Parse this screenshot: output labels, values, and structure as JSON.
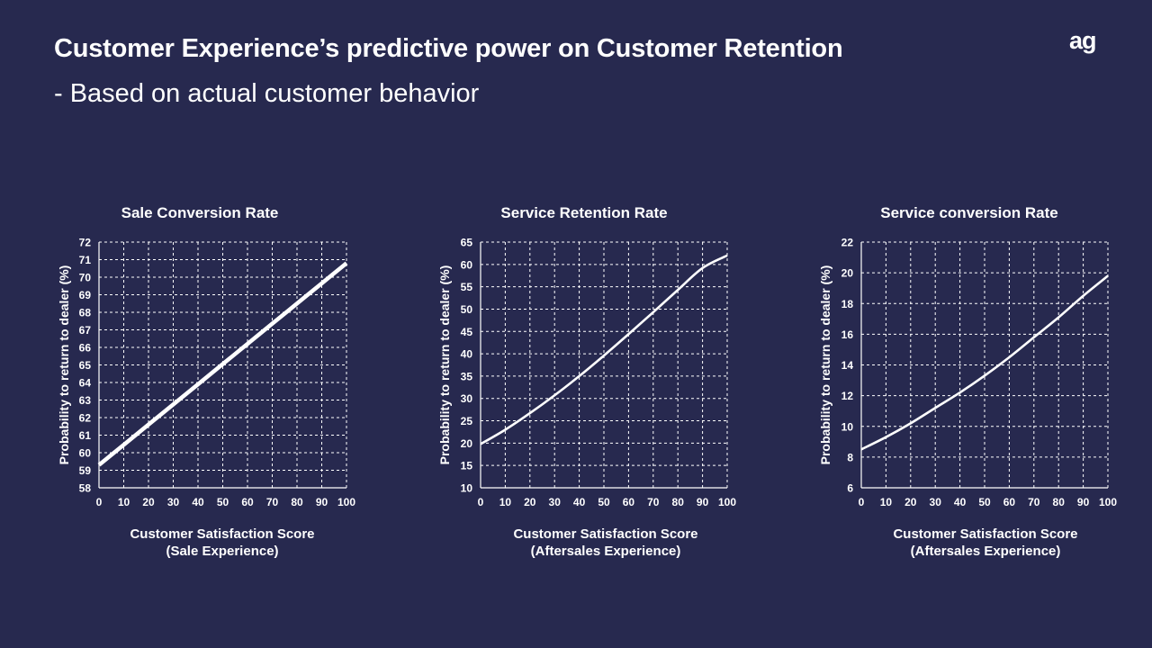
{
  "header": {
    "title": "Customer Experience’s predictive power on Customer Retention",
    "subtitle": "- Based on actual customer behavior",
    "logo": "ag"
  },
  "colors": {
    "background": "#27294f",
    "foreground": "#ffffff",
    "grid": "#ffffff"
  },
  "chart_data": [
    {
      "type": "line",
      "title": "Sale Conversion Rate",
      "ylabel": "Probability to return to dealer (%)",
      "xlabel": [
        "Customer Satisfaction Score",
        "(Sale Experience)"
      ],
      "xlim": [
        0,
        100
      ],
      "ylim": [
        58,
        72
      ],
      "xticks": [
        0,
        10,
        20,
        30,
        40,
        50,
        60,
        70,
        80,
        90,
        100
      ],
      "yticks": [
        58,
        59,
        60,
        61,
        62,
        63,
        64,
        65,
        66,
        67,
        68,
        69,
        70,
        71,
        72
      ],
      "grid": true,
      "series": [
        {
          "x": [
            0,
            10,
            20,
            30,
            40,
            50,
            60,
            70,
            80,
            90,
            100
          ],
          "values": [
            59.3,
            60.45,
            61.6,
            62.75,
            63.9,
            65.05,
            66.2,
            67.35,
            68.5,
            69.65,
            70.8
          ]
        }
      ]
    },
    {
      "type": "line",
      "title": "Service Retention Rate",
      "ylabel": "Probability to return to dealer (%)",
      "xlabel": [
        "Customer Satisfaction Score",
        "(Aftersales Experience)"
      ],
      "xlim": [
        0,
        100
      ],
      "ylim": [
        10,
        65
      ],
      "xticks": [
        0,
        10,
        20,
        30,
        40,
        50,
        60,
        70,
        80,
        90,
        100
      ],
      "yticks": [
        10,
        15,
        20,
        25,
        30,
        35,
        40,
        45,
        50,
        55,
        60,
        65
      ],
      "grid": true,
      "series": [
        {
          "x": [
            0,
            10,
            20,
            30,
            40,
            50,
            60,
            70,
            80,
            90,
            100
          ],
          "values": [
            19.8,
            23.0,
            26.7,
            30.7,
            35.0,
            39.6,
            44.4,
            49.3,
            54.3,
            59.2,
            62.0
          ]
        }
      ]
    },
    {
      "type": "line",
      "title": "Service conversion Rate",
      "ylabel": "Probability to return to dealer (%)",
      "xlabel": [
        "Customer Satisfaction Score",
        "(Aftersales Experience)"
      ],
      "xlim": [
        0,
        100
      ],
      "ylim": [
        6,
        22
      ],
      "xticks": [
        0,
        10,
        20,
        30,
        40,
        50,
        60,
        70,
        80,
        90,
        100
      ],
      "yticks": [
        6,
        8,
        10,
        12,
        14,
        16,
        18,
        20,
        22
      ],
      "grid": true,
      "series": [
        {
          "x": [
            0,
            10,
            20,
            30,
            40,
            50,
            60,
            70,
            80,
            90,
            100
          ],
          "values": [
            8.5,
            9.3,
            10.2,
            11.2,
            12.2,
            13.3,
            14.5,
            15.8,
            17.1,
            18.5,
            19.8
          ]
        }
      ]
    }
  ]
}
